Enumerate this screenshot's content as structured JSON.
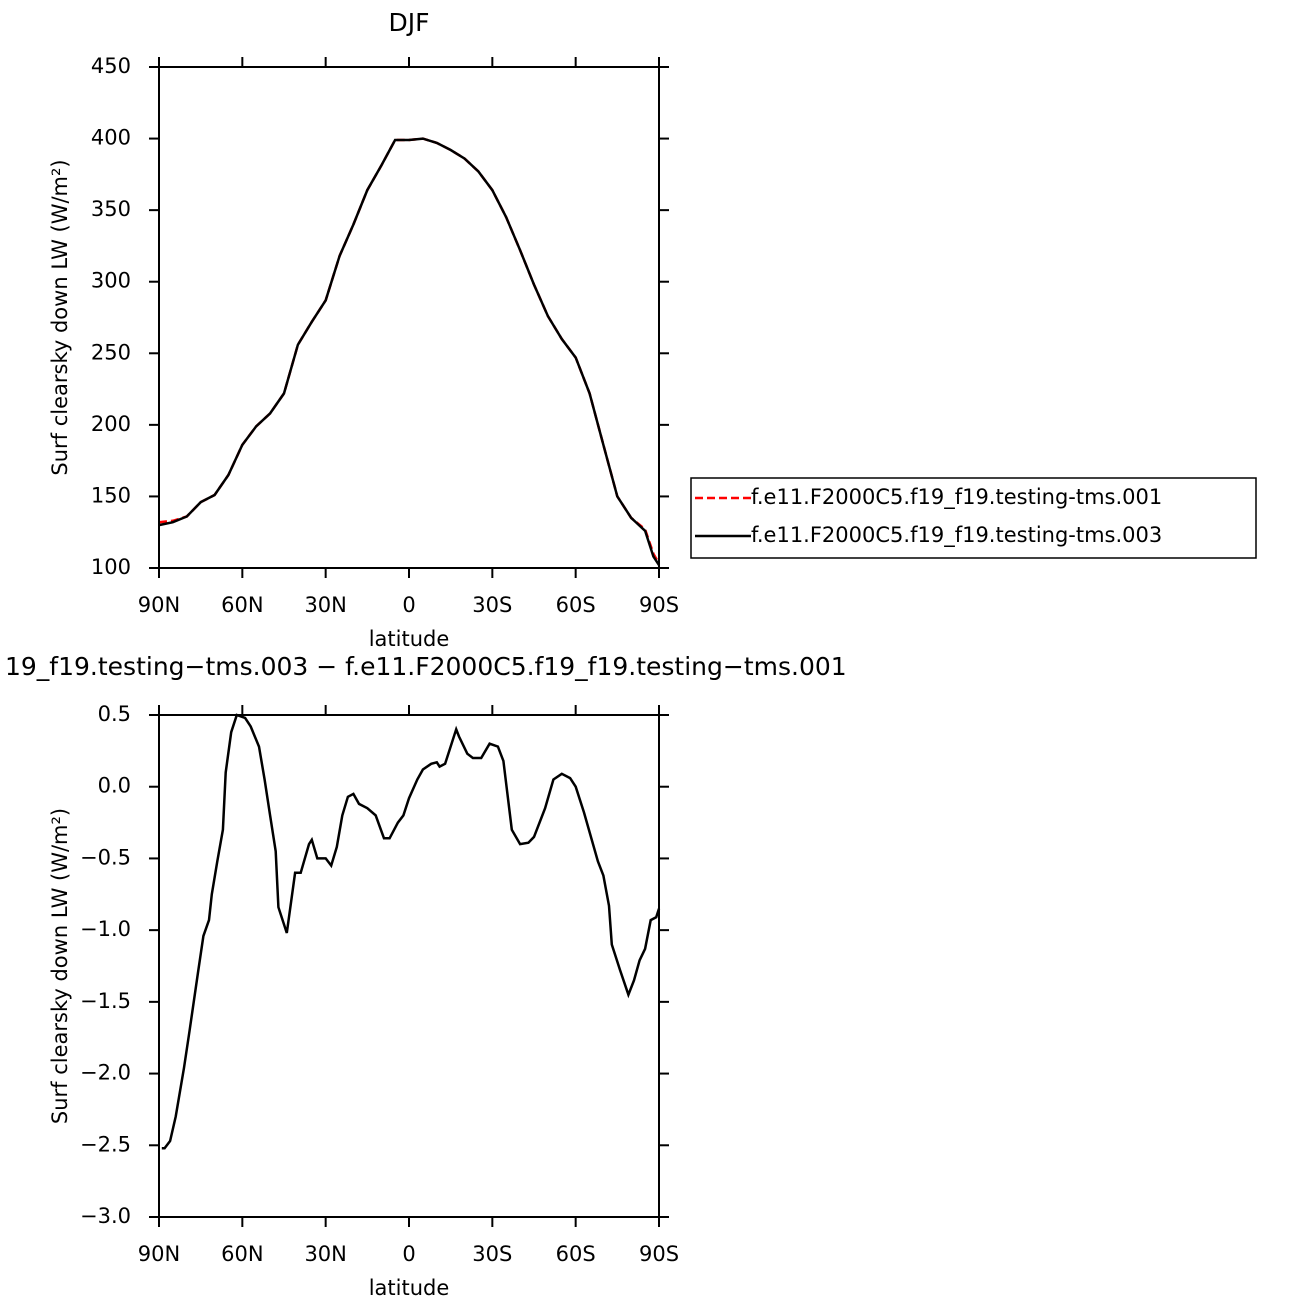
{
  "chart_data": [
    {
      "type": "line",
      "title": "DJF",
      "xlabel": "latitude",
      "ylabel": "Surf clearsky down LW (W/m²)",
      "x": [
        90,
        85,
        80,
        75,
        70,
        65,
        60,
        55,
        50,
        45,
        40,
        35,
        30,
        25,
        20,
        15,
        10,
        5,
        0,
        -5,
        -10,
        -15,
        -20,
        -25,
        -30,
        -35,
        -40,
        -45,
        -50,
        -55,
        -60,
        -65,
        -70,
        -75,
        -80,
        -85,
        -88,
        -90
      ],
      "series": [
        {
          "name": "f.e11.F2000C5.f19_f19.testing-tms.001",
          "color": "#ff0000",
          "line_style": "dashed",
          "values": [
            132,
            133,
            136,
            146,
            151,
            165,
            186,
            199,
            208,
            222,
            256,
            272,
            287,
            318,
            340,
            364,
            381,
            399,
            399,
            400,
            397,
            392,
            386,
            377,
            364,
            345,
            322,
            298,
            276,
            260,
            247,
            222,
            186,
            150,
            135,
            127,
            110,
            103
          ]
        },
        {
          "name": "f.e11.F2000C5.f19_f19.testing-tms.003",
          "color": "#000000",
          "line_style": "solid",
          "values": [
            130,
            132,
            136,
            146,
            151,
            165,
            186,
            199,
            208,
            222,
            256,
            272,
            287,
            318,
            340,
            364,
            381,
            399,
            399,
            400,
            397,
            392,
            386,
            377,
            364,
            345,
            322,
            298,
            276,
            260,
            247,
            222,
            186,
            150,
            135,
            126,
            108,
            102
          ]
        }
      ],
      "xlim": [
        90,
        -90
      ],
      "xticks": [
        {
          "value": 90,
          "label": "90N"
        },
        {
          "value": 60,
          "label": "60N"
        },
        {
          "value": 30,
          "label": "30N"
        },
        0,
        {
          "value": -30,
          "label": "30S"
        },
        {
          "value": -60,
          "label": "60S"
        },
        {
          "value": -90,
          "label": "90S"
        }
      ],
      "ylim": [
        100,
        450
      ],
      "yticks": [
        100,
        150,
        200,
        250,
        300,
        350,
        400,
        450
      ],
      "legend": "right"
    },
    {
      "type": "line",
      "title": "19_f19.testing−tms.003 − f.e11.F2000C5.f19_f19.testing−tms.001",
      "xlabel": "latitude",
      "ylabel": "Surf clearsky down LW (W/m²)",
      "x": [
        89,
        88,
        86,
        84,
        81,
        79,
        76,
        74,
        72,
        71,
        69,
        67,
        66,
        64,
        62,
        59,
        57,
        54,
        52,
        50,
        48,
        47,
        44,
        41,
        39,
        36,
        35,
        33,
        30,
        28,
        26,
        24,
        22,
        20,
        18,
        15,
        12,
        9,
        7,
        4,
        2,
        0,
        -3,
        -5,
        -8,
        -10,
        -11,
        -13,
        -17,
        -18,
        -21,
        -23,
        -26,
        -29,
        -32,
        -34,
        -37,
        -40,
        -43,
        -45,
        -49,
        -52,
        -55,
        -58,
        -60,
        -63,
        -68,
        -70,
        -72,
        -73,
        -76,
        -79,
        -81,
        -83,
        -85,
        -87,
        -89,
        -90
      ],
      "series": [
        {
          "color": "#000000",
          "line_style": "solid",
          "values": [
            -2.52,
            -2.52,
            -2.47,
            -2.3,
            -1.96,
            -1.7,
            -1.3,
            -1.04,
            -0.93,
            -0.75,
            -0.52,
            -0.3,
            0.1,
            0.38,
            0.5,
            0.48,
            0.42,
            0.28,
            0.05,
            -0.2,
            -0.45,
            -0.84,
            -1.02,
            -0.6,
            -0.6,
            -0.4,
            -0.37,
            -0.5,
            -0.5,
            -0.55,
            -0.42,
            -0.2,
            -0.07,
            -0.05,
            -0.12,
            -0.15,
            -0.2,
            -0.36,
            -0.36,
            -0.25,
            -0.2,
            -0.08,
            0.05,
            0.12,
            0.16,
            0.17,
            0.14,
            0.16,
            0.4,
            0.35,
            0.23,
            0.2,
            0.2,
            0.3,
            0.28,
            0.18,
            -0.3,
            -0.4,
            -0.39,
            -0.35,
            -0.15,
            0.05,
            0.09,
            0.06,
            0.0,
            -0.18,
            -0.52,
            -0.62,
            -0.83,
            -1.1,
            -1.28,
            -1.45,
            -1.35,
            -1.21,
            -1.13,
            -0.93,
            -0.91,
            -0.85
          ]
        }
      ],
      "xlim": [
        90,
        -90
      ],
      "xticks": [
        {
          "value": 90,
          "label": "90N"
        },
        {
          "value": 60,
          "label": "60N"
        },
        {
          "value": 30,
          "label": "30N"
        },
        0,
        {
          "value": -30,
          "label": "30S"
        },
        {
          "value": -60,
          "label": "60S"
        },
        {
          "value": -90,
          "label": "90S"
        }
      ],
      "ylim": [
        -3,
        0.5
      ],
      "yticks": [
        {
          "value": -3,
          "label": "−3.0"
        },
        {
          "value": -2.5,
          "label": "−2.5"
        },
        {
          "value": -2,
          "label": "−2.0"
        },
        {
          "value": -1.5,
          "label": "−1.5"
        },
        {
          "value": -1,
          "label": "−1.0"
        },
        {
          "value": -0.5,
          "label": "−0.5"
        },
        {
          "value": 0,
          "label": "0.0"
        },
        0.5
      ]
    }
  ]
}
